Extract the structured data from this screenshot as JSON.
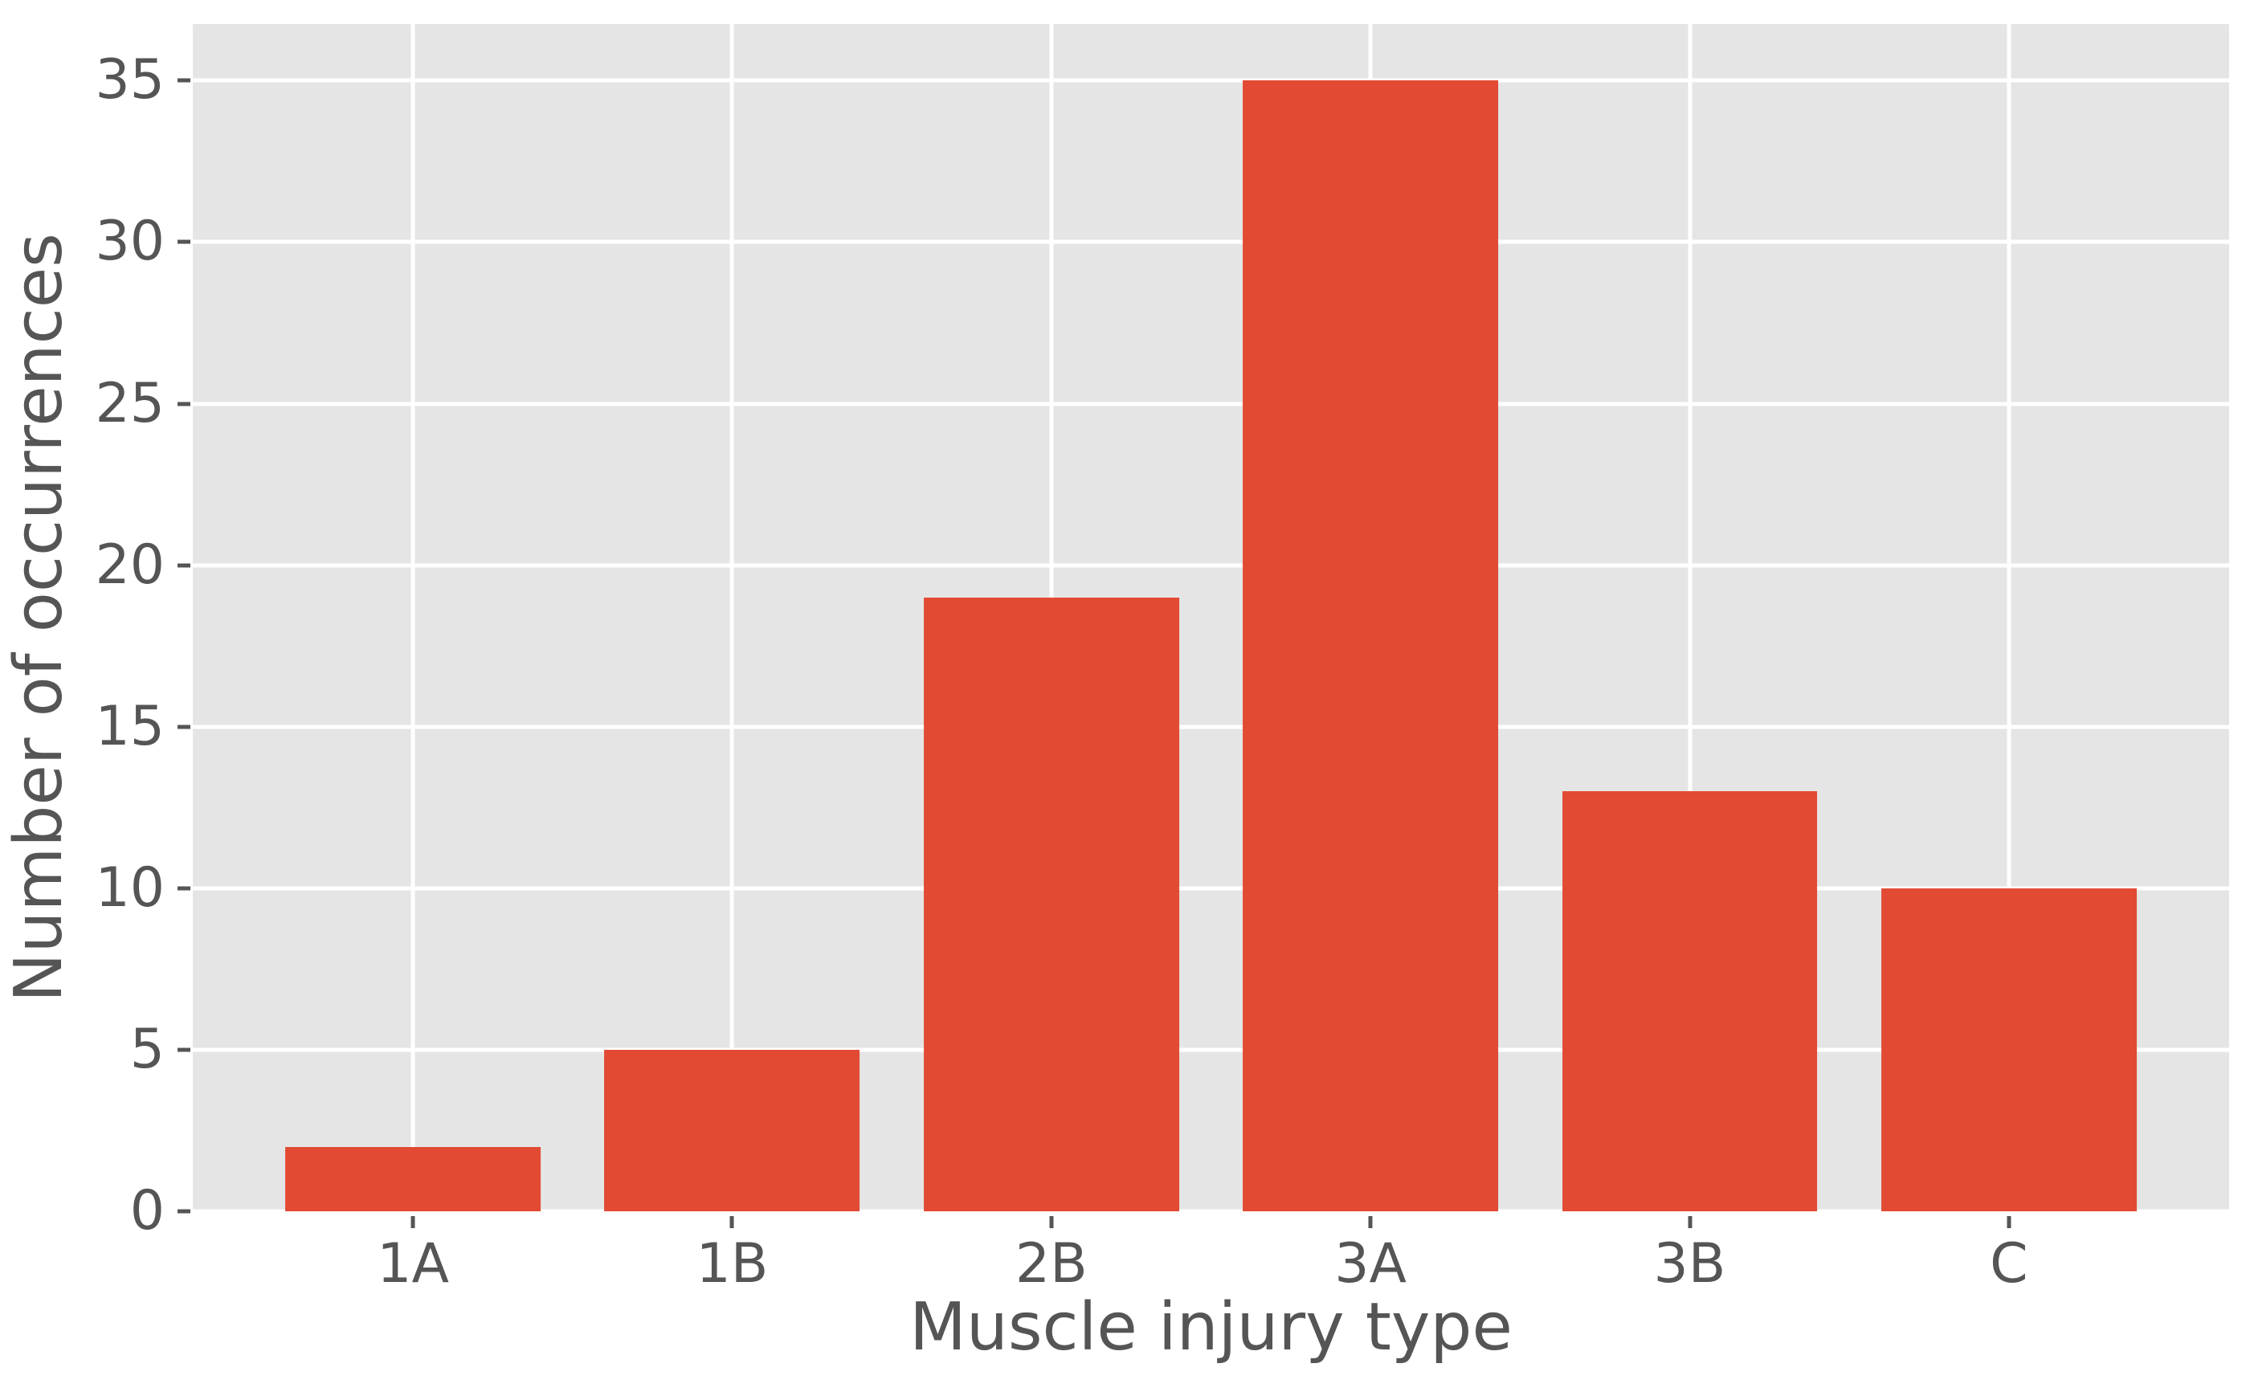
{
  "chart_data": {
    "type": "bar",
    "title": "",
    "categories": [
      "1A",
      "1B",
      "2B",
      "3A",
      "3B",
      "C"
    ],
    "values": [
      2,
      5,
      19,
      35,
      13,
      10
    ],
    "xlabel": "Muscle injury type",
    "ylabel": "Number of occurrences",
    "yticks": [
      0,
      5,
      10,
      15,
      20,
      25,
      30,
      35
    ],
    "ytick_labels": [
      "0",
      "5",
      "10",
      "15",
      "20",
      "25",
      "30",
      "35"
    ],
    "ylim": [
      0,
      36.75
    ],
    "xlim": [
      -0.69,
      5.69
    ],
    "bar_width_ratio": 0.8,
    "grid": "on",
    "grid_axis": "both",
    "legend": "none",
    "colors": {
      "bar": "#E24A33",
      "plot_background": "#E5E5E5",
      "gridline": "#FFFFFF",
      "tick_text": "#555555",
      "axis_label_text": "#555555",
      "figure_background": "#FFFFFF"
    }
  }
}
